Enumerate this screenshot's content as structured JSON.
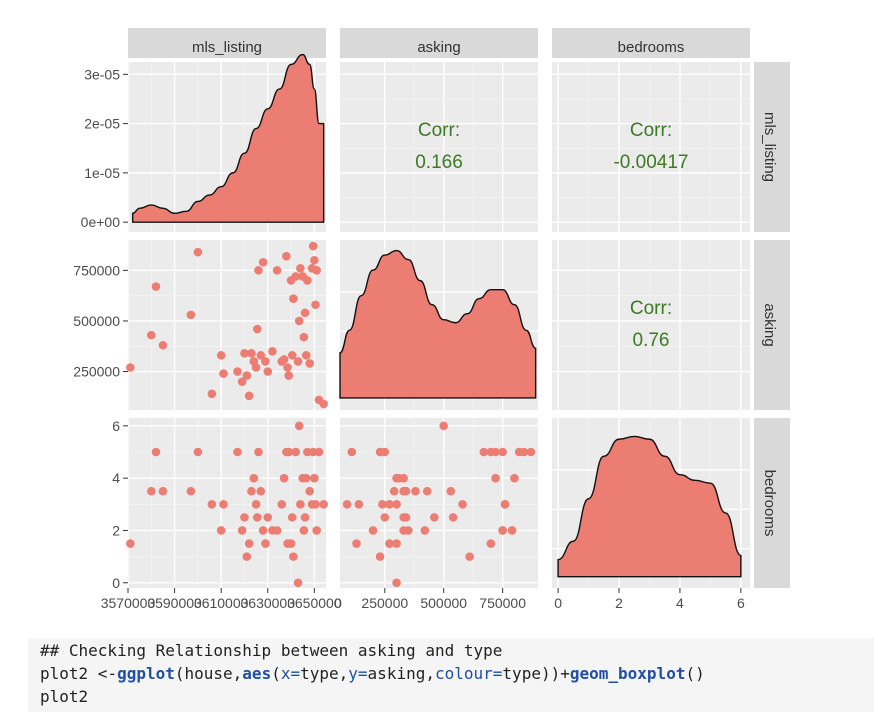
{
  "chart_data": {
    "type": "scatter-matrix",
    "variables": [
      "mls_listing",
      "asking",
      "bedrooms"
    ],
    "strip_labels": {
      "top": [
        "mls_listing",
        "asking",
        "bedrooms"
      ],
      "right": [
        "mls_listing",
        "asking",
        "bedrooms"
      ]
    },
    "fill_color": "#ec7d72",
    "point_color": "#ec7d72",
    "panel_bg": "#ebebeb",
    "strip_bg": "#d9d9d9",
    "corr_color": "#3d7a24",
    "correlations": [
      {
        "pair": "mls_listing-asking",
        "label": "Corr:",
        "value": "0.166"
      },
      {
        "pair": "mls_listing-bedrooms",
        "label": "Corr:",
        "value": "-0.00417"
      },
      {
        "pair": "asking-bedrooms",
        "label": "Corr:",
        "value": "0.76"
      }
    ],
    "axes": {
      "mls_listing": {
        "range": [
          3570000,
          3655000
        ],
        "tick_values": [
          3570000,
          3590000,
          3610000,
          3630000,
          3650000
        ],
        "tick_labels": [
          "3570000",
          "3590000",
          "3610000",
          "3630000",
          "3650000"
        ]
      },
      "asking": {
        "range": [
          60000,
          900000
        ],
        "tick_values": [
          250000,
          500000,
          750000
        ],
        "tick_labels": [
          "250000",
          "500000",
          "750000"
        ]
      },
      "bedrooms": {
        "range": [
          -0.2,
          6.3
        ],
        "tick_values": [
          0,
          2,
          4,
          6
        ],
        "tick_labels": [
          "0",
          "2",
          "4",
          "6"
        ]
      },
      "density_mls": {
        "range": [
          -2e-06,
          3.25e-05
        ],
        "tick_values": [
          0,
          1e-05,
          2e-05,
          3e-05
        ],
        "tick_labels": [
          "0e+00",
          "1e-05",
          "2e-05",
          "3e-05"
        ]
      },
      "x_bottom_asking_ticks": {
        "tick_values": [
          250000,
          500000,
          750000
        ],
        "tick_labels": [
          "250000",
          "500000",
          "750000"
        ],
        "edge_label": "0"
      },
      "x_bottom_bedrooms_ticks": {
        "tick_values": [
          0,
          2,
          4,
          6
        ],
        "tick_labels": [
          "0",
          "2",
          "4",
          "6"
        ]
      }
    },
    "density_mls_listing": {
      "x": [
        3572000,
        3575000,
        3580000,
        3585000,
        3590000,
        3595000,
        3600000,
        3605000,
        3610000,
        3615000,
        3620000,
        3625000,
        3630000,
        3635000,
        3640000,
        3645000,
        3648000,
        3650000,
        3652000,
        3654000
      ],
      "y": [
        1.8e-06,
        2.8e-06,
        3.5e-06,
        2.8e-06,
        1.8e-06,
        2.2e-06,
        4.2e-06,
        5.5e-06,
        7.2e-06,
        1e-05,
        1.4e-05,
        1.9e-05,
        2.3e-05,
        2.7e-05,
        3.2e-05,
        3.4e-05,
        3.2e-05,
        2.7e-05,
        2e-05,
        2e-05
      ]
    },
    "density_asking": {
      "x": [
        60000,
        100000,
        150000,
        200000,
        250000,
        300000,
        350000,
        400000,
        450000,
        500000,
        550000,
        600000,
        650000,
        700000,
        750000,
        800000,
        850000,
        890000
      ],
      "y": [
        0.3,
        0.45,
        0.68,
        0.85,
        0.95,
        0.98,
        0.92,
        0.78,
        0.62,
        0.52,
        0.5,
        0.56,
        0.66,
        0.72,
        0.72,
        0.62,
        0.45,
        0.33
      ]
    },
    "density_bedrooms": {
      "x": [
        0,
        0.5,
        1,
        1.5,
        2,
        2.5,
        3,
        3.5,
        4,
        4.5,
        5,
        5.5,
        6
      ],
      "y": [
        0.12,
        0.25,
        0.55,
        0.85,
        0.97,
        0.99,
        0.97,
        0.85,
        0.72,
        0.68,
        0.66,
        0.45,
        0.15
      ]
    },
    "points": [
      {
        "mls": 3571000,
        "asking": 270000,
        "bedrooms": 1.5
      },
      {
        "mls": 3580000,
        "asking": 430000,
        "bedrooms": 3.5
      },
      {
        "mls": 3582000,
        "asking": 670000,
        "bedrooms": 5
      },
      {
        "mls": 3585000,
        "asking": 380000,
        "bedrooms": 3.5
      },
      {
        "mls": 3597000,
        "asking": 530000,
        "bedrooms": 3.5
      },
      {
        "mls": 3600000,
        "asking": 840000,
        "bedrooms": 5
      },
      {
        "mls": 3606000,
        "asking": 140000,
        "bedrooms": 3
      },
      {
        "mls": 3610000,
        "asking": 330000,
        "bedrooms": 2
      },
      {
        "mls": 3611000,
        "asking": 240000,
        "bedrooms": 3
      },
      {
        "mls": 3617000,
        "asking": 250000,
        "bedrooms": 5
      },
      {
        "mls": 3619000,
        "asking": 200000,
        "bedrooms": 2
      },
      {
        "mls": 3620000,
        "asking": 340000,
        "bedrooms": 2.5
      },
      {
        "mls": 3621000,
        "asking": 230000,
        "bedrooms": 1
      },
      {
        "mls": 3622000,
        "asking": 130000,
        "bedrooms": 1.5
      },
      {
        "mls": 3623000,
        "asking": 340000,
        "bedrooms": 3.5
      },
      {
        "mls": 3624000,
        "asking": 300000,
        "bedrooms": 4
      },
      {
        "mls": 3625000,
        "asking": 270000,
        "bedrooms": 3
      },
      {
        "mls": 3625500,
        "asking": 460000,
        "bedrooms": 2.5
      },
      {
        "mls": 3626000,
        "asking": 750000,
        "bedrooms": 5
      },
      {
        "mls": 3627000,
        "asking": 330000,
        "bedrooms": 3.5
      },
      {
        "mls": 3628000,
        "asking": 790000,
        "bedrooms": 2
      },
      {
        "mls": 3629000,
        "asking": 300000,
        "bedrooms": 1.5
      },
      {
        "mls": 3630000,
        "asking": 250000,
        "bedrooms": 2.5
      },
      {
        "mls": 3632000,
        "asking": 350000,
        "bedrooms": 2
      },
      {
        "mls": 3634000,
        "asking": 750000,
        "bedrooms": 2
      },
      {
        "mls": 3636000,
        "asking": 300000,
        "bedrooms": 3
      },
      {
        "mls": 3637000,
        "asking": 310000,
        "bedrooms": 4
      },
      {
        "mls": 3638000,
        "asking": 820000,
        "bedrooms": 5
      },
      {
        "mls": 3638500,
        "asking": 270000,
        "bedrooms": 1.5
      },
      {
        "mls": 3639000,
        "asking": 230000,
        "bedrooms": 5
      },
      {
        "mls": 3640000,
        "asking": 700000,
        "bedrooms": 1.5
      },
      {
        "mls": 3640500,
        "asking": 330000,
        "bedrooms": 2.5
      },
      {
        "mls": 3641000,
        "asking": 610000,
        "bedrooms": 1
      },
      {
        "mls": 3642000,
        "asking": 720000,
        "bedrooms": 5
      },
      {
        "mls": 3643000,
        "asking": 300000,
        "bedrooms": 0
      },
      {
        "mls": 3643500,
        "asking": 500000,
        "bedrooms": 6
      },
      {
        "mls": 3644000,
        "asking": 760000,
        "bedrooms": 3
      },
      {
        "mls": 3645000,
        "asking": 720000,
        "bedrooms": 4
      },
      {
        "mls": 3645500,
        "asking": 420000,
        "bedrooms": 2
      },
      {
        "mls": 3646000,
        "asking": 540000,
        "bedrooms": 2.5
      },
      {
        "mls": 3646500,
        "asking": 330000,
        "bedrooms": 4
      },
      {
        "mls": 3647000,
        "asking": 700000,
        "bedrooms": 5
      },
      {
        "mls": 3648000,
        "asking": 290000,
        "bedrooms": 3.5
      },
      {
        "mls": 3649000,
        "asking": 760000,
        "bedrooms": 3
      },
      {
        "mls": 3649500,
        "asking": 870000,
        "bedrooms": 5
      },
      {
        "mls": 3650000,
        "asking": 800000,
        "bedrooms": 4
      },
      {
        "mls": 3650500,
        "asking": 580000,
        "bedrooms": 3
      },
      {
        "mls": 3651000,
        "asking": 750000,
        "bedrooms": 2
      },
      {
        "mls": 3652000,
        "asking": 110000,
        "bedrooms": 5
      },
      {
        "mls": 3654000,
        "asking": 90000,
        "bedrooms": 3
      }
    ]
  },
  "code": {
    "comment": "## Checking Relationship between asking and type",
    "line2_pre": "plot2 <-",
    "line2_fn1": "ggplot",
    "line2_p1": "(house,",
    "line2_fn2": "aes",
    "line2_p2": "(",
    "line2_arg1": "x=",
    "line2_p3": "type,",
    "line2_arg2": "y=",
    "line2_p4": "asking,",
    "line2_arg3": "colour=",
    "line2_p5": "type))+",
    "line2_fn3": "geom_boxplot",
    "line2_p6": "()",
    "line3": "plot2"
  }
}
